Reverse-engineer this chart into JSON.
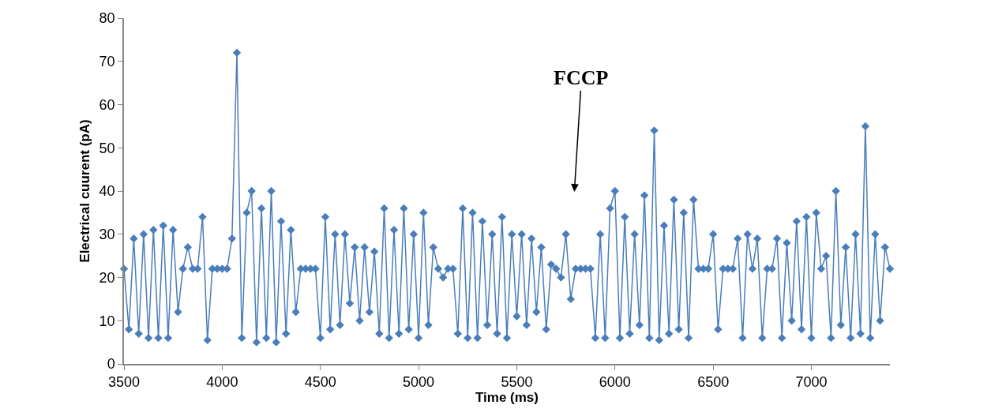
{
  "chart_data": {
    "type": "line",
    "xlabel": "Time (ms)",
    "ylabel": "Electrical cuurent (pA)",
    "x": [
      3500,
      3525,
      3550,
      3575,
      3600,
      3625,
      3650,
      3675,
      3700,
      3725,
      3750,
      3775,
      3800,
      3825,
      3850,
      3875,
      3900,
      3925,
      3950,
      3975,
      4000,
      4025,
      4050,
      4075,
      4100,
      4125,
      4150,
      4175,
      4200,
      4225,
      4250,
      4275,
      4300,
      4325,
      4350,
      4375,
      4400,
      4425,
      4450,
      4475,
      4500,
      4525,
      4550,
      4575,
      4600,
      4625,
      4650,
      4675,
      4700,
      4725,
      4750,
      4775,
      4800,
      4825,
      4850,
      4875,
      4900,
      4925,
      4950,
      4975,
      5000,
      5025,
      5050,
      5075,
      5100,
      5125,
      5150,
      5175,
      5200,
      5225,
      5250,
      5275,
      5300,
      5325,
      5350,
      5375,
      5400,
      5425,
      5450,
      5475,
      5500,
      5525,
      5550,
      5575,
      5600,
      5625,
      5650,
      5675,
      5700,
      5725,
      5750,
      5775,
      5800,
      5825,
      5850,
      5875,
      5900,
      5925,
      5950,
      5975,
      6000,
      6025,
      6050,
      6075,
      6100,
      6125,
      6150,
      6175,
      6200,
      6225,
      6250,
      6275,
      6300,
      6325,
      6350,
      6375,
      6400,
      6425,
      6450,
      6475,
      6500,
      6525,
      6550,
      6575,
      6600,
      6625,
      6650,
      6675,
      6700,
      6725,
      6750,
      6775,
      6800,
      6825,
      6850,
      6875,
      6900,
      6925,
      6950,
      6975,
      7000,
      7025,
      7050,
      7075,
      7100,
      7125,
      7150,
      7175,
      7200,
      7225,
      7250,
      7275,
      7300,
      7325,
      7350,
      7375,
      7400
    ],
    "series": [
      {
        "color": "#4a7ebb",
        "values": [
          22,
          8,
          29,
          7,
          30,
          6,
          31,
          6,
          32,
          6,
          31,
          12,
          22,
          27,
          22,
          22,
          34,
          5.5,
          22,
          22,
          22,
          22,
          29,
          72,
          6,
          35,
          40,
          5,
          36,
          6,
          40,
          5,
          33,
          7,
          31,
          12,
          22,
          22,
          22,
          22,
          6,
          34,
          8,
          30,
          9,
          30,
          14,
          27,
          10,
          27,
          12,
          26,
          7,
          36,
          6,
          31,
          7,
          36,
          8,
          30,
          6,
          35,
          9,
          27,
          22,
          20,
          22,
          22,
          7,
          36,
          6,
          35,
          6,
          33,
          9,
          30,
          7,
          34,
          6,
          30,
          11,
          30,
          9,
          29,
          12,
          27,
          8,
          23,
          22,
          20,
          30,
          15,
          22,
          22,
          22,
          22,
          6,
          30,
          6,
          36,
          40,
          6,
          34,
          7,
          30,
          9,
          39,
          6,
          54,
          5.5,
          32,
          7,
          38,
          8,
          35,
          6,
          38,
          22,
          22,
          22,
          30,
          8,
          22,
          22,
          22,
          29,
          6,
          30,
          22,
          29,
          6,
          22,
          22,
          29,
          6,
          28,
          10,
          33,
          8,
          34,
          6,
          35,
          22,
          25,
          6,
          40,
          9,
          27,
          6,
          30,
          7,
          55,
          6,
          30,
          10,
          27,
          22
        ]
      }
    ],
    "xlim": [
      3500,
      7400
    ],
    "xticks": [
      3500,
      4000,
      4500,
      5000,
      5500,
      6000,
      6500,
      7000
    ],
    "ylim": [
      0,
      80
    ],
    "yticks": [
      0,
      10,
      20,
      30,
      40,
      50,
      60,
      70,
      80
    ],
    "marker": "diamond",
    "line_style": "solid",
    "annotations": [
      "FCCP"
    ]
  }
}
